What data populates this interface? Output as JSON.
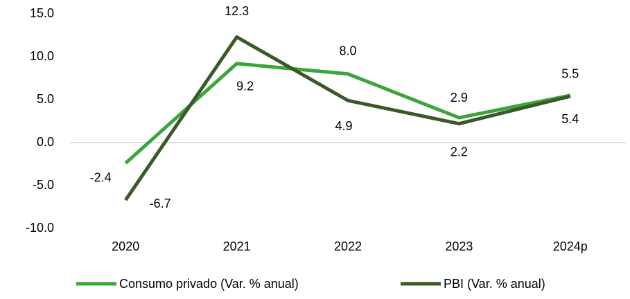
{
  "chart_data": {
    "type": "line",
    "categories": [
      "2020",
      "2021",
      "2022",
      "2023",
      "2024p"
    ],
    "series": [
      {
        "name": "Consumo privado (Var. % anual)",
        "color": "#3aa53a",
        "values": [
          -2.4,
          9.2,
          8.0,
          2.9,
          5.5
        ],
        "value_labels": [
          "-2.4",
          "9.2",
          "8.0",
          "2.9",
          "5.5"
        ]
      },
      {
        "name": "PBI (Var. % anual)",
        "color": "#3b5829",
        "values": [
          -6.7,
          12.3,
          4.9,
          2.2,
          5.4
        ],
        "value_labels": [
          "-6.7",
          "12.3",
          "4.9",
          "2.2",
          "5.4"
        ]
      }
    ],
    "ylim": [
      -10,
      15
    ],
    "yticks": [
      {
        "value": -10,
        "label": "-10.0"
      },
      {
        "value": -5,
        "label": "-5.0"
      },
      {
        "value": 0,
        "label": "0.0"
      },
      {
        "value": 5,
        "label": "5.0"
      },
      {
        "value": 10,
        "label": "10.0"
      },
      {
        "value": 15,
        "label": "15.0"
      }
    ],
    "grid": false,
    "legend": "bottom"
  }
}
